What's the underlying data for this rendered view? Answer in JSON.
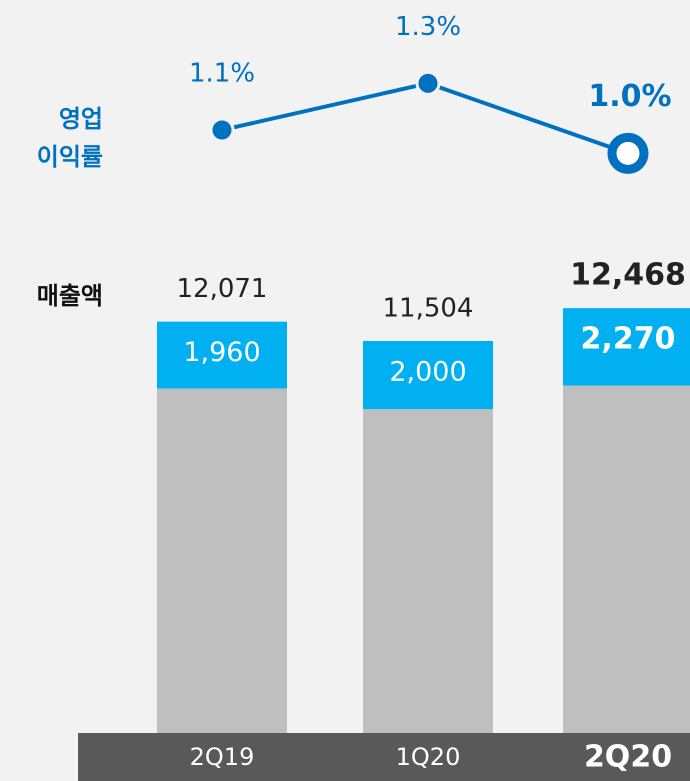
{
  "chart_data": {
    "type": "bar",
    "categories": [
      "2Q19",
      "1Q20",
      "2Q20"
    ],
    "series": [
      {
        "color": "#bfbfbf",
        "values": [
          10111,
          9504,
          10198
        ]
      },
      {
        "color": "#00b0f0",
        "values": [
          1960,
          2000,
          2270
        ],
        "value_labels": [
          "1,960",
          "2,000",
          "2,270"
        ]
      }
    ],
    "totals": {
      "values": [
        12071,
        11504,
        12468
      ],
      "value_labels": [
        "12,071",
        "11,504",
        "12,468"
      ]
    },
    "ylim": [
      0,
      13000
    ],
    "margin": {
      "values": [
        1.1,
        1.3,
        1.0
      ],
      "value_labels": [
        "1.1%",
        "1.3%",
        "1.0%"
      ],
      "color": "#0070c0"
    },
    "y2lim": [
      0.8,
      1.4
    ],
    "row_labels": {
      "sales": "매출액",
      "margin_line1": "영업",
      "margin_line2": "이익률"
    }
  }
}
